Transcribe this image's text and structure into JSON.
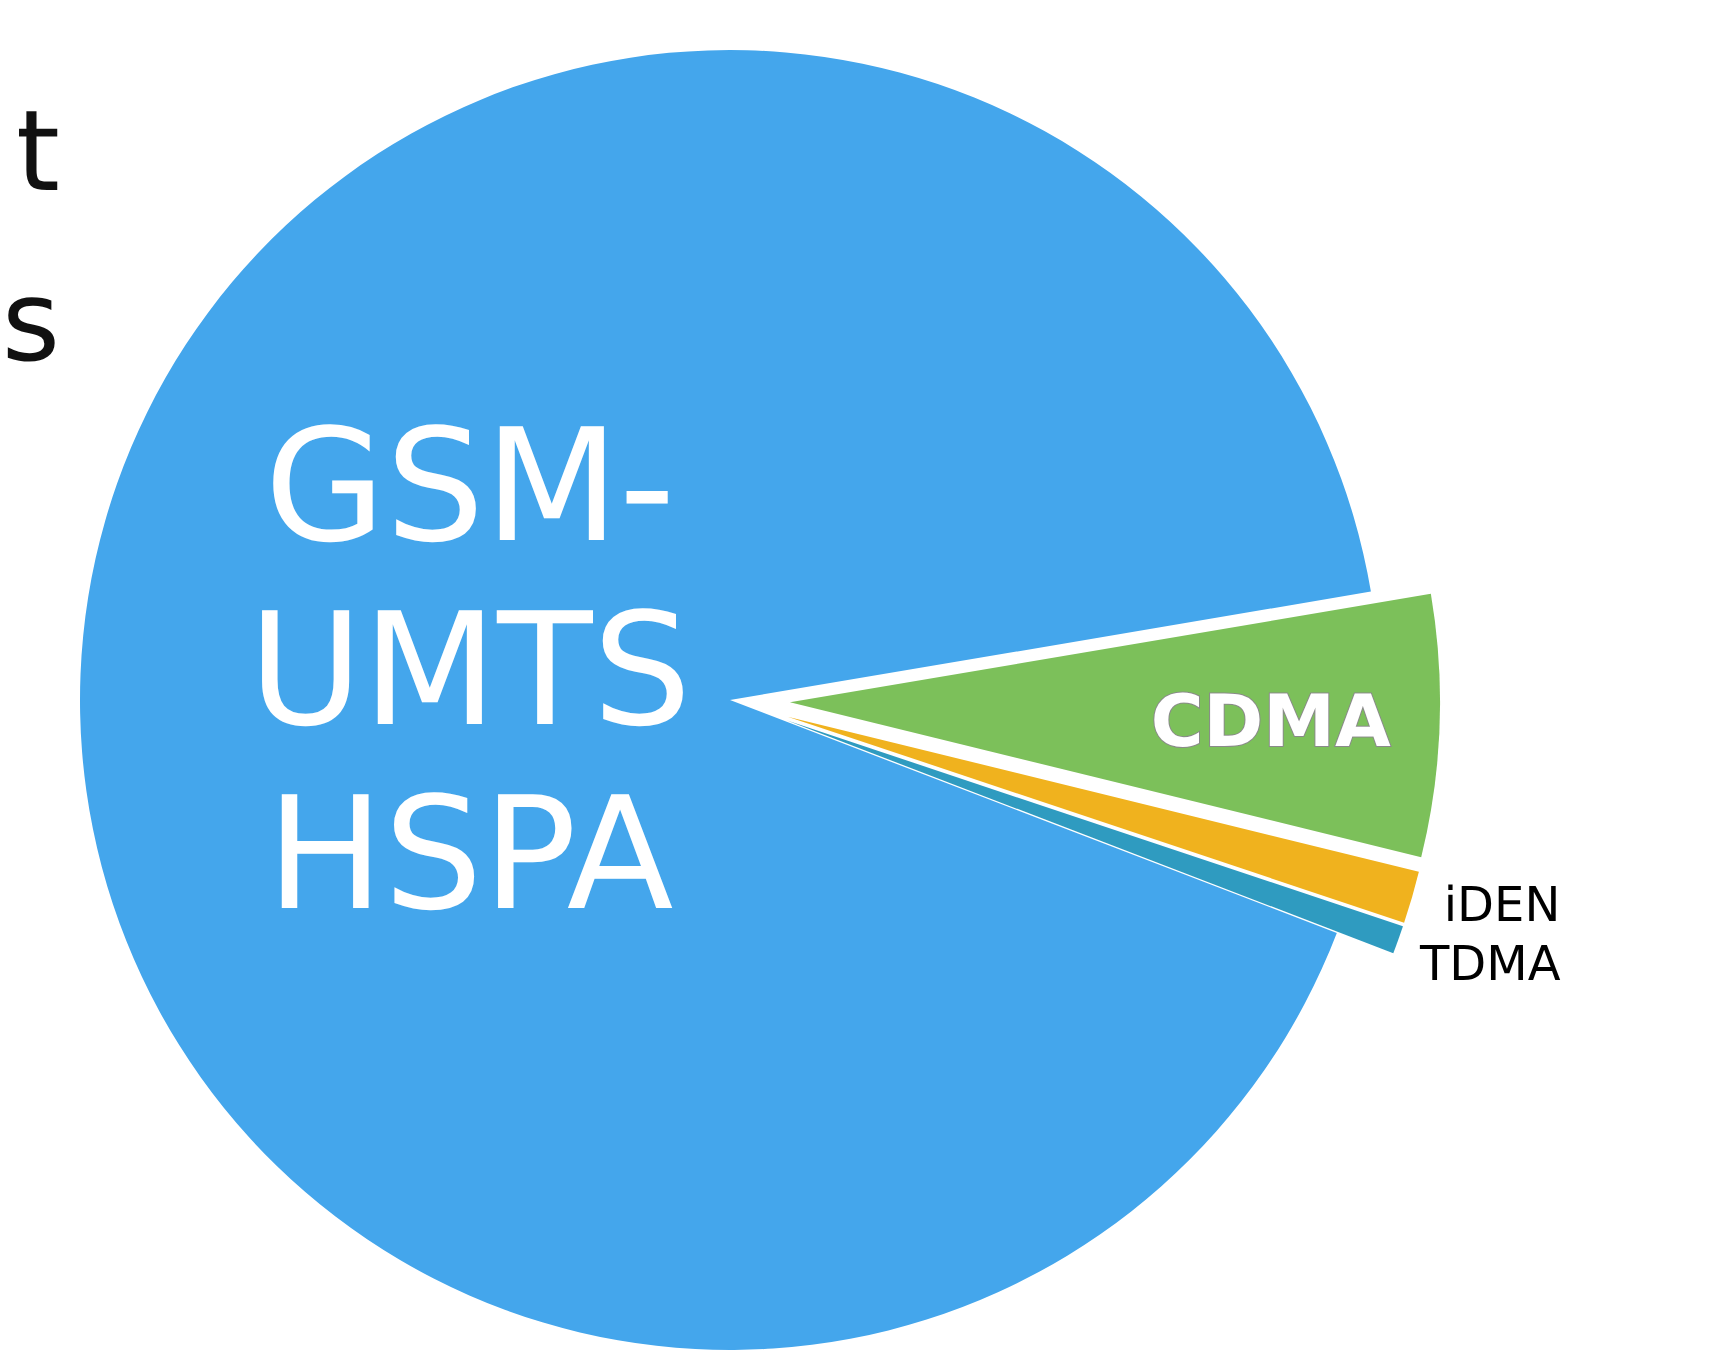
{
  "chart_data": {
    "type": "pie",
    "categories": [
      "GSM-\nUMTS\nHSPA",
      "CDMA",
      "iDEN",
      "TDMA"
    ],
    "values": [
      91.5,
      6.5,
      1.3,
      0.7
    ],
    "colors": [
      "#44a6ec",
      "#7cc05a",
      "#f0b21e",
      "#2f9bc0"
    ],
    "annotations": [
      "t",
      "s"
    ]
  }
}
